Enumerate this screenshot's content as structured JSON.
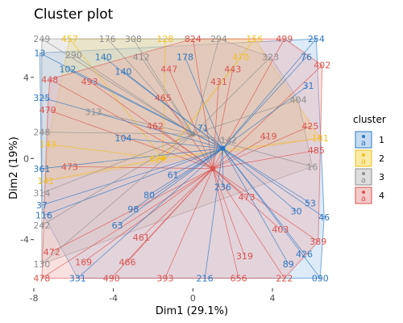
{
  "chart_data": {
    "type": "scatter",
    "title": "Cluster plot",
    "xlabel": "Dim1 (29.1%)",
    "ylabel": "Dim2 (19%)",
    "xlim": [
      -8,
      7.2
    ],
    "ylim": [
      -6.4,
      6.5
    ],
    "xticks": [
      -8,
      -4,
      0,
      4
    ],
    "yticks": [
      -4,
      0,
      4
    ],
    "grid": false,
    "legend": {
      "title": "cluster",
      "position": "right",
      "entries": [
        "1",
        "2",
        "3",
        "4"
      ],
      "glyph": "a"
    },
    "clusters": [
      {
        "name": "1",
        "color": "#2E77C2",
        "fill": "#9EC3EA",
        "center": [
          1.5,
          0.5
        ]
      },
      {
        "name": "2",
        "color": "#F0C020",
        "fill": "#F5DC6A",
        "center": [
          -1.5,
          0.0
        ]
      },
      {
        "name": "3",
        "color": "#8E8E8E",
        "fill": "#C8C8C8",
        "center": [
          0.0,
          1.2
        ]
      },
      {
        "name": "4",
        "color": "#D9534F",
        "fill": "#EDA9A6",
        "center": [
          1.0,
          -0.5
        ]
      }
    ],
    "points": [
      {
        "x": -7.6,
        "y": 5.9,
        "label": "249",
        "cluster": 3
      },
      {
        "x": -6.2,
        "y": 5.9,
        "label": "457",
        "cluster": 2
      },
      {
        "x": -4.3,
        "y": 5.9,
        "label": "176",
        "cluster": 3
      },
      {
        "x": -3.0,
        "y": 5.9,
        "label": "308",
        "cluster": 3
      },
      {
        "x": -1.4,
        "y": 5.9,
        "label": "128",
        "cluster": 2
      },
      {
        "x": 0.0,
        "y": 5.9,
        "label": "824",
        "cluster": 4
      },
      {
        "x": 1.3,
        "y": 5.9,
        "label": "294",
        "cluster": 3
      },
      {
        "x": 3.1,
        "y": 5.9,
        "label": "156",
        "cluster": 2
      },
      {
        "x": 4.6,
        "y": 5.9,
        "label": "499",
        "cluster": 4
      },
      {
        "x": 6.2,
        "y": 5.9,
        "label": "254",
        "cluster": 1
      },
      {
        "x": -7.7,
        "y": 5.2,
        "label": "13",
        "cluster": 1
      },
      {
        "x": -6.0,
        "y": 5.1,
        "label": "290",
        "cluster": 3
      },
      {
        "x": -4.5,
        "y": 5.0,
        "label": "140",
        "cluster": 1
      },
      {
        "x": -2.6,
        "y": 5.0,
        "label": "412",
        "cluster": 3
      },
      {
        "x": -0.4,
        "y": 5.0,
        "label": "178",
        "cluster": 1
      },
      {
        "x": 2.4,
        "y": 5.0,
        "label": "470",
        "cluster": 2
      },
      {
        "x": 3.9,
        "y": 5.0,
        "label": "323",
        "cluster": 3
      },
      {
        "x": 5.7,
        "y": 5.0,
        "label": "76",
        "cluster": 1
      },
      {
        "x": -6.3,
        "y": 4.4,
        "label": "102",
        "cluster": 1
      },
      {
        "x": -3.5,
        "y": 4.3,
        "label": "140",
        "cluster": 1
      },
      {
        "x": -1.2,
        "y": 4.4,
        "label": "447",
        "cluster": 4
      },
      {
        "x": 2.0,
        "y": 4.4,
        "label": "443",
        "cluster": 4
      },
      {
        "x": 6.5,
        "y": 4.6,
        "label": "402",
        "cluster": 4
      },
      {
        "x": -7.2,
        "y": 3.9,
        "label": "448",
        "cluster": 4
      },
      {
        "x": -5.2,
        "y": 3.8,
        "label": "493",
        "cluster": 4
      },
      {
        "x": 1.3,
        "y": 3.8,
        "label": "431",
        "cluster": 4
      },
      {
        "x": 5.8,
        "y": 3.6,
        "label": "31",
        "cluster": 1
      },
      {
        "x": -7.6,
        "y": 3.0,
        "label": "325",
        "cluster": 1
      },
      {
        "x": -1.5,
        "y": 3.0,
        "label": "465",
        "cluster": 4
      },
      {
        "x": 5.3,
        "y": 2.9,
        "label": "404",
        "cluster": 3
      },
      {
        "x": -7.3,
        "y": 2.4,
        "label": "479",
        "cluster": 4
      },
      {
        "x": -5.0,
        "y": 2.3,
        "label": "313",
        "cluster": 3
      },
      {
        "x": -1.9,
        "y": 1.6,
        "label": "462",
        "cluster": 4
      },
      {
        "x": 5.9,
        "y": 1.6,
        "label": "425",
        "cluster": 4
      },
      {
        "x": 0.5,
        "y": 1.5,
        "label": "71",
        "cluster": 1
      },
      {
        "x": -7.6,
        "y": 1.3,
        "label": "248",
        "cluster": 3
      },
      {
        "x": 3.8,
        "y": 1.1,
        "label": "419",
        "cluster": 4
      },
      {
        "x": 6.4,
        "y": 1.0,
        "label": "181",
        "cluster": 2
      },
      {
        "x": -3.5,
        "y": 1.0,
        "label": "104",
        "cluster": 1
      },
      {
        "x": 1.8,
        "y": 0.9,
        "label": "142",
        "cluster": 3
      },
      {
        "x": -7.3,
        "y": 0.7,
        "label": "143",
        "cluster": 2
      },
      {
        "x": 6.2,
        "y": 0.4,
        "label": "485",
        "cluster": 4
      },
      {
        "x": -7.6,
        "y": -0.5,
        "label": "361",
        "cluster": 1
      },
      {
        "x": -6.2,
        "y": -0.4,
        "label": "473",
        "cluster": 4
      },
      {
        "x": -1.9,
        "y": 0.0,
        "label": "62",
        "cluster": 2
      },
      {
        "x": 6.0,
        "y": -0.4,
        "label": "16",
        "cluster": 3
      },
      {
        "x": -7.4,
        "y": -1.1,
        "label": "141",
        "cluster": 2
      },
      {
        "x": -1.0,
        "y": -0.8,
        "label": "61",
        "cluster": 1
      },
      {
        "x": 1.5,
        "y": -1.4,
        "label": "236",
        "cluster": 1
      },
      {
        "x": -7.6,
        "y": -1.7,
        "label": "314",
        "cluster": 3
      },
      {
        "x": -2.2,
        "y": -1.8,
        "label": "80",
        "cluster": 1
      },
      {
        "x": 2.7,
        "y": -1.9,
        "label": "473",
        "cluster": 4
      },
      {
        "x": 5.9,
        "y": -2.2,
        "label": "53",
        "cluster": 1
      },
      {
        "x": -7.6,
        "y": -2.3,
        "label": "37",
        "cluster": 1
      },
      {
        "x": -3.0,
        "y": -2.5,
        "label": "98",
        "cluster": 1
      },
      {
        "x": 5.2,
        "y": -2.6,
        "label": "30",
        "cluster": 1
      },
      {
        "x": -7.5,
        "y": -2.8,
        "label": "116",
        "cluster": 1
      },
      {
        "x": 6.6,
        "y": -2.9,
        "label": "46",
        "cluster": 1
      },
      {
        "x": -7.6,
        "y": -3.3,
        "label": "242",
        "cluster": 3
      },
      {
        "x": -3.8,
        "y": -3.3,
        "label": "63",
        "cluster": 1
      },
      {
        "x": 4.4,
        "y": -3.5,
        "label": "403",
        "cluster": 4
      },
      {
        "x": -2.6,
        "y": -3.9,
        "label": "461",
        "cluster": 4
      },
      {
        "x": 6.3,
        "y": -4.1,
        "label": "389",
        "cluster": 4
      },
      {
        "x": -7.1,
        "y": -4.6,
        "label": "472",
        "cluster": 4
      },
      {
        "x": 2.6,
        "y": -4.8,
        "label": "319",
        "cluster": 4
      },
      {
        "x": 5.6,
        "y": -4.7,
        "label": "426",
        "cluster": 1
      },
      {
        "x": -7.6,
        "y": -5.2,
        "label": "130",
        "cluster": 3
      },
      {
        "x": -5.5,
        "y": -5.1,
        "label": "169",
        "cluster": 4
      },
      {
        "x": -3.3,
        "y": -5.1,
        "label": "466",
        "cluster": 4
      },
      {
        "x": 4.8,
        "y": -5.2,
        "label": "89",
        "cluster": 1
      },
      {
        "x": -7.6,
        "y": -5.9,
        "label": "478",
        "cluster": 4
      },
      {
        "x": -5.8,
        "y": -5.9,
        "label": "331",
        "cluster": 1
      },
      {
        "x": -4.1,
        "y": -5.9,
        "label": "490",
        "cluster": 4
      },
      {
        "x": -1.4,
        "y": -5.9,
        "label": "393",
        "cluster": 4
      },
      {
        "x": 0.6,
        "y": -5.9,
        "label": "216",
        "cluster": 1
      },
      {
        "x": 2.3,
        "y": -5.9,
        "label": "656",
        "cluster": 4
      },
      {
        "x": 4.6,
        "y": -5.9,
        "label": "222",
        "cluster": 4
      },
      {
        "x": 6.4,
        "y": -5.9,
        "label": "090",
        "cluster": 1
      }
    ]
  }
}
